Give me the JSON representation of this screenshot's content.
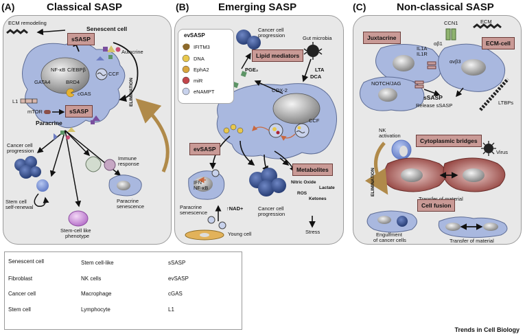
{
  "panels": {
    "a": {
      "letter": "(A)",
      "title": "Classical SASP"
    },
    "b": {
      "letter": "(B)",
      "title": "Emerging SASP"
    },
    "c": {
      "letter": "(C)",
      "title": "Non-classical SASP"
    }
  },
  "panel_a": {
    "ecm_remodeling": "ECM remodeling",
    "senescent_cell": "Senescent cell",
    "ssasp_top": "sSASP",
    "autocrine": "Autocrine",
    "nfkb": "NF-κB",
    "cebp": "C/EBPβ",
    "ccf": "CCF",
    "gata4": "GATA4",
    "brd4": "BRD4",
    "cgas": "cGAS",
    "l1": "L1",
    "mtor": "mTOR",
    "ssasp_mid": "sSASP",
    "elimination": "ELIMINATION",
    "paracrine": "Paracrine",
    "cancer_progression_1": "Cancer cell",
    "cancer_progression_2": "progression",
    "immune_1": "Immune",
    "immune_2": "response",
    "stem_renewal_1": "Stem cell",
    "stem_renewal_2": "self-renewal",
    "paracrine_sen_1": "Paracrine",
    "paracrine_sen_2": "senescence",
    "stemlike_1": "Stem-cell like",
    "stemlike_2": "phenotype"
  },
  "panel_b": {
    "evsasp_title": "evSASP",
    "ev_items": [
      "IFITM3",
      "DNA",
      "EphA2",
      "miR",
      "eNAMPT"
    ],
    "cancer_prog_top_1": "Cancer cell",
    "cancer_prog_top_2": "progression",
    "gut_microbia": "Gut microbia",
    "lipid_mediators": "Lipid mediators",
    "lta": "LTA",
    "dca": "DCA",
    "pge2": "PGE₂",
    "cox2": "COX-2",
    "ccf": "CCF",
    "evsasp_box": "evSASP",
    "ifn": "IFN",
    "nfkb": "NF-κB",
    "paracrine_sen_1": "Paracrine",
    "paracrine_sen_2": "senescence",
    "nad": "↑NAD+",
    "young_cell": "Young cell",
    "cancer_prog_bot_1": "Cancer cell",
    "cancer_prog_bot_2": "progression",
    "metabolites": "Metabolites",
    "nitric_oxide": "Nitric Oxide",
    "ros": "ROS",
    "lactate": "Lactate",
    "ketones": "Ketones",
    "stress": "Stress"
  },
  "panel_c": {
    "juxtacrine": "Juxtacrine",
    "il1a": "IL1A",
    "il1r": "IL1R",
    "ccn1": "CCN1",
    "ecm": "ECM",
    "ab1": "αβ1",
    "ecm_cell": "ECM-cell",
    "avb3": "αvβ3",
    "notch": "NOTCH/JAG",
    "ssasp": "sSASP",
    "release": "Release sSASP",
    "ltbps": "LTBPs",
    "nk_1": "NK",
    "nk_2": "activation",
    "cyto_bridges": "Cytoplasmic bridges",
    "virus": "Virus",
    "elimination": "ELIMINATION",
    "transfer_1": "Transfer of material",
    "cell_fusion": "Cell fusion",
    "engulf_1": "Engulfment",
    "engulf_2": "of cancer cells",
    "transfer_2": "Transfer of material"
  },
  "legend": {
    "col1": [
      "Senescent cell",
      "Fibroblast",
      "Cancer cell",
      "Stem cell"
    ],
    "col2": [
      "Stem cell-like",
      "NK cells",
      "Macrophage",
      "Lymphocyte"
    ],
    "col3": [
      "sSASP",
      "evSASP",
      "cGAS",
      "L1"
    ]
  },
  "footer": "Trends in Cell Biology",
  "colors": {
    "senescent": "#a9b8df",
    "cancer": "#3b5597",
    "box_fill": "#c99a96",
    "panel_bg": "#e8e8e8",
    "elimination_arrow": "#b08a4a"
  }
}
